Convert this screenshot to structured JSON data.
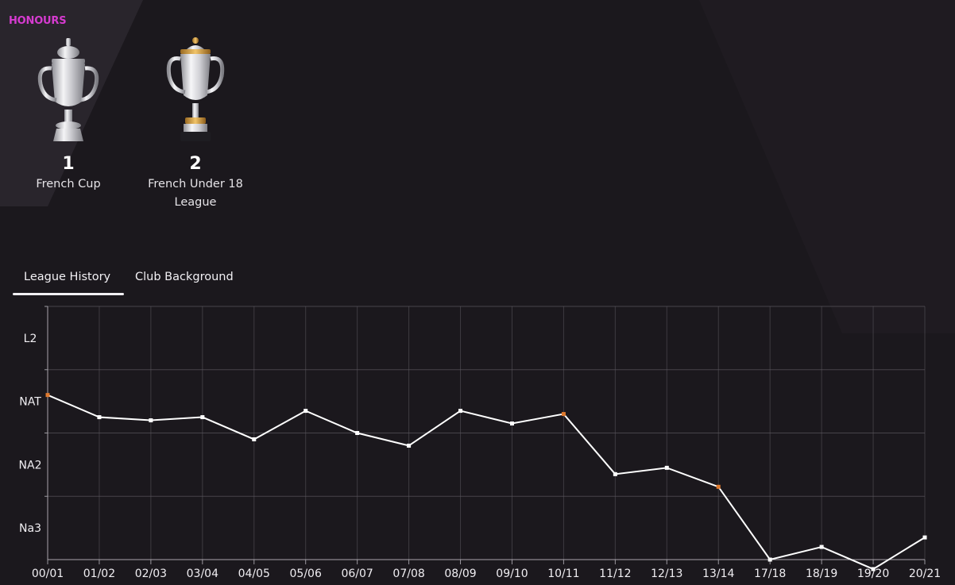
{
  "honours": {
    "title": "HONOURS",
    "trophies": [
      {
        "count": "1",
        "name": "French Cup",
        "icon": "silver-cup-icon"
      },
      {
        "count": "2",
        "name": "French Under 18 League",
        "icon": "gold-trim-cup-icon"
      }
    ]
  },
  "tabs": [
    {
      "label": "League History",
      "active": true
    },
    {
      "label": "Club Background",
      "active": false
    }
  ],
  "colors": {
    "background": "#1b181d",
    "accent": "#d63bd0",
    "line": "#ffffff",
    "highlight_point": "#e07a2e",
    "grid": "#5a575e"
  },
  "chart_data": {
    "type": "line",
    "ylabels": [
      "L2",
      "NAT",
      "NA2",
      "Na3"
    ],
    "categories": [
      "00/01",
      "01/02",
      "02/03",
      "03/04",
      "04/05",
      "05/06",
      "06/07",
      "07/08",
      "08/09",
      "09/10",
      "10/11",
      "11/12",
      "12/13",
      "13/14",
      "17/18",
      "18/19",
      "19/20",
      "20/21"
    ],
    "series": [
      {
        "values": [
          1.9,
          2.25,
          2.3,
          2.25,
          2.6,
          2.15,
          2.5,
          2.7,
          2.15,
          2.35,
          2.2,
          3.15,
          3.05,
          3.35,
          4.5,
          4.3,
          4.65,
          4.15
        ],
        "highlight": [
          0,
          10,
          13
        ]
      }
    ],
    "ylim": [
      0.5,
      4.5
    ],
    "grid": true
  }
}
